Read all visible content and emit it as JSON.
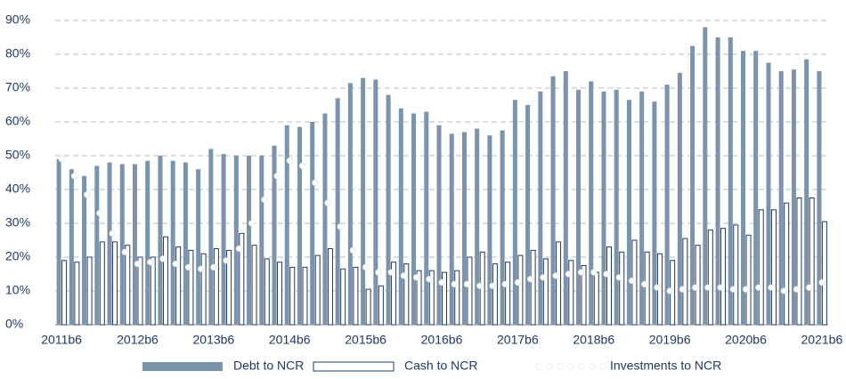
{
  "chart_data": {
    "type": "bar",
    "categories": [
      "2011b6",
      null,
      null,
      null,
      null,
      null,
      "2012b6",
      null,
      null,
      null,
      null,
      null,
      "2013b6",
      null,
      null,
      null,
      null,
      null,
      "2014b6",
      null,
      null,
      null,
      null,
      null,
      "2015b6",
      null,
      null,
      null,
      null,
      null,
      "2016b6",
      null,
      null,
      null,
      null,
      null,
      "2017b6",
      null,
      null,
      null,
      null,
      null,
      "2018b6",
      null,
      null,
      null,
      null,
      null,
      "2019b6",
      null,
      null,
      null,
      null,
      null,
      "2020b6",
      null,
      null,
      null,
      null,
      null,
      "2021b6"
    ],
    "series": [
      {
        "name": "Debt to NCR",
        "type": "bar",
        "color": "#7b93ab",
        "values": [
          49,
          46,
          44,
          47,
          48,
          47.5,
          47.5,
          48.5,
          50,
          48.5,
          48,
          46,
          52,
          50.5,
          50,
          50,
          50,
          53,
          59,
          58.5,
          60,
          62.5,
          67,
          71.5,
          73,
          72.5,
          68,
          64,
          62.5,
          63,
          59,
          56.5,
          57,
          58,
          56,
          57.5,
          66.5,
          65,
          69,
          73.5,
          75,
          69.5,
          72,
          69,
          69.5,
          66.5,
          69,
          66,
          71,
          74.5,
          82.5,
          88,
          85,
          85,
          81,
          81,
          77.5,
          75,
          75.5,
          78.5,
          75
        ]
      },
      {
        "name": "Cash to NCR",
        "type": "bar",
        "color": "#1f3864",
        "values": [
          19,
          18.5,
          20,
          24.5,
          24.5,
          23.5,
          20,
          20,
          26,
          23,
          22,
          21,
          22.5,
          22,
          27,
          23.5,
          19.5,
          18.5,
          17,
          17,
          20.5,
          22.5,
          16.5,
          17,
          10.5,
          11.5,
          18.5,
          18,
          16,
          16,
          15.5,
          16,
          20,
          21.5,
          18,
          18.5,
          20.5,
          22,
          19.5,
          24.5,
          19,
          17.5,
          15.5,
          23,
          21.5,
          25,
          21.5,
          21,
          19,
          25.5,
          23.5,
          28,
          28.5,
          29.5,
          26.5,
          34,
          34,
          36,
          37.5,
          37.5,
          30.5
        ]
      },
      {
        "name": "Investments to NCR",
        "type": "line",
        "style": "dotted",
        "color": "#ffffff",
        "values": [
          49,
          44,
          38.5,
          33,
          27,
          21.5,
          18,
          18.5,
          19.5,
          18,
          17,
          16.5,
          17,
          19,
          22.5,
          30,
          37,
          44,
          48.5,
          47,
          42,
          36,
          29,
          22,
          17,
          15.5,
          15.5,
          14.5,
          14,
          13.5,
          12.5,
          12,
          12,
          11.5,
          11.5,
          12,
          12.5,
          13.5,
          14,
          14.5,
          15,
          15.5,
          15.5,
          15,
          14,
          13,
          12,
          11,
          10,
          10.5,
          11,
          11,
          11,
          10.5,
          10.5,
          11,
          11,
          10,
          10.5,
          11,
          12.5
        ]
      }
    ],
    "ylim": [
      0,
      90
    ],
    "yticks": [
      {
        "value": 0,
        "label": "0%"
      },
      {
        "value": 10,
        "label": "10%"
      },
      {
        "value": 20,
        "label": "20%"
      },
      {
        "value": 30,
        "label": "30%"
      },
      {
        "value": 40,
        "label": "40%"
      },
      {
        "value": 50,
        "label": "50%"
      },
      {
        "value": 60,
        "label": "60%"
      },
      {
        "value": 70,
        "label": "70%"
      },
      {
        "value": 80,
        "label": "80%"
      },
      {
        "value": 90,
        "label": "90%"
      }
    ],
    "grid": true,
    "legend": "bottom"
  }
}
